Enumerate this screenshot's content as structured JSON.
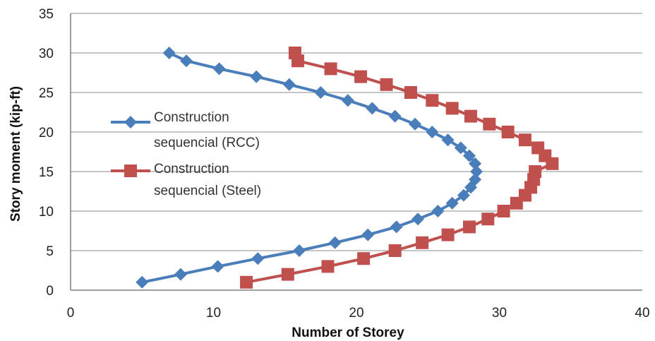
{
  "chart_data": {
    "type": "scatter",
    "title": "",
    "xlabel": "Number of Storey",
    "ylabel": "Story moment (kip-ft)",
    "xlim": [
      0,
      40
    ],
    "ylim": [
      0,
      35
    ],
    "x_ticks": [
      "0",
      "10",
      "20",
      "30",
      "40"
    ],
    "y_ticks": [
      "0",
      "5",
      "10",
      "15",
      "20",
      "25",
      "30",
      "35"
    ],
    "grid": "horizontal",
    "legend_position": "left-middle",
    "series": [
      {
        "name": "Construction sequencial (RCC)",
        "color": "#4a7ebb",
        "marker": "diamond",
        "points": [
          [
            5.0,
            1
          ],
          [
            7.7,
            2
          ],
          [
            10.3,
            3
          ],
          [
            13.1,
            4
          ],
          [
            16.0,
            5
          ],
          [
            18.5,
            6
          ],
          [
            20.8,
            7
          ],
          [
            22.8,
            8
          ],
          [
            24.3,
            9
          ],
          [
            25.7,
            10
          ],
          [
            26.7,
            11
          ],
          [
            27.5,
            12
          ],
          [
            28.0,
            13
          ],
          [
            28.3,
            14
          ],
          [
            28.4,
            15
          ],
          [
            28.3,
            16
          ],
          [
            27.9,
            17
          ],
          [
            27.3,
            18
          ],
          [
            26.4,
            19
          ],
          [
            25.3,
            20
          ],
          [
            24.1,
            21
          ],
          [
            22.7,
            22
          ],
          [
            21.1,
            23
          ],
          [
            19.4,
            24
          ],
          [
            17.5,
            25
          ],
          [
            15.3,
            26
          ],
          [
            13.0,
            27
          ],
          [
            10.4,
            28
          ],
          [
            8.1,
            29
          ],
          [
            6.9,
            30
          ]
        ]
      },
      {
        "name": "Construction sequencial (Steel)",
        "color": "#c0504d",
        "marker": "square",
        "points": [
          [
            12.3,
            1
          ],
          [
            15.2,
            2
          ],
          [
            18.0,
            3
          ],
          [
            20.5,
            4
          ],
          [
            22.7,
            5
          ],
          [
            24.6,
            6
          ],
          [
            26.4,
            7
          ],
          [
            27.9,
            8
          ],
          [
            29.2,
            9
          ],
          [
            30.3,
            10
          ],
          [
            31.2,
            11
          ],
          [
            31.8,
            12
          ],
          [
            32.2,
            13
          ],
          [
            32.4,
            14
          ],
          [
            32.5,
            15
          ],
          [
            33.7,
            16
          ],
          [
            33.2,
            17
          ],
          [
            32.7,
            18
          ],
          [
            31.8,
            19
          ],
          [
            30.6,
            20
          ],
          [
            29.3,
            21
          ],
          [
            28.0,
            22
          ],
          [
            26.7,
            23
          ],
          [
            25.3,
            24
          ],
          [
            23.8,
            25
          ],
          [
            22.1,
            26
          ],
          [
            20.3,
            27
          ],
          [
            18.2,
            28
          ],
          [
            15.9,
            29
          ],
          [
            15.7,
            30
          ]
        ]
      }
    ]
  }
}
